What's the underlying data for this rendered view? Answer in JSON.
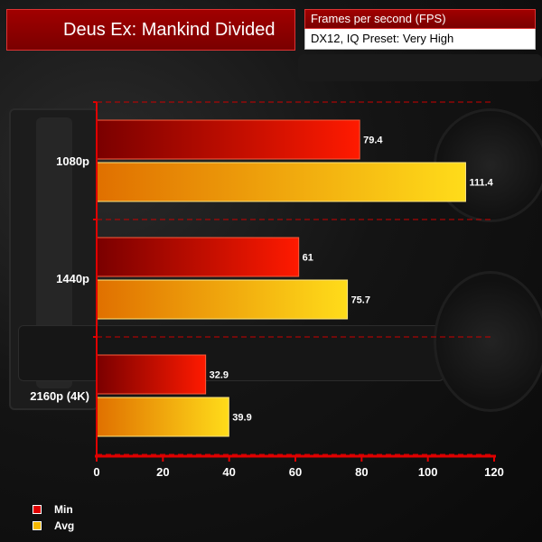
{
  "title": "Deus Ex: Mankind Divided",
  "subtitle_top": "Frames per second (FPS)",
  "subtitle_bottom": "DX12, IQ Preset: Very High",
  "colors": {
    "accent": "#a10000",
    "min_series": "#e00000",
    "avg_series": "#f5b800",
    "grid": "#cc0000"
  },
  "chart_data": {
    "type": "bar",
    "orientation": "horizontal",
    "categories": [
      "1080p",
      "1440p",
      "2160p (4K)"
    ],
    "series": [
      {
        "name": "Min",
        "values": [
          79.4,
          61,
          32.9
        ]
      },
      {
        "name": "Avg",
        "values": [
          111.4,
          75.7,
          39.9
        ]
      }
    ],
    "value_labels": [
      [
        "79.4",
        "61",
        "32.9"
      ],
      [
        "111.4",
        "75.7",
        "39.9"
      ]
    ],
    "xlim": [
      0,
      120
    ],
    "x_ticks": [
      0,
      20,
      40,
      60,
      80,
      100,
      120
    ],
    "grid": true,
    "legend_position": "bottom-left"
  }
}
